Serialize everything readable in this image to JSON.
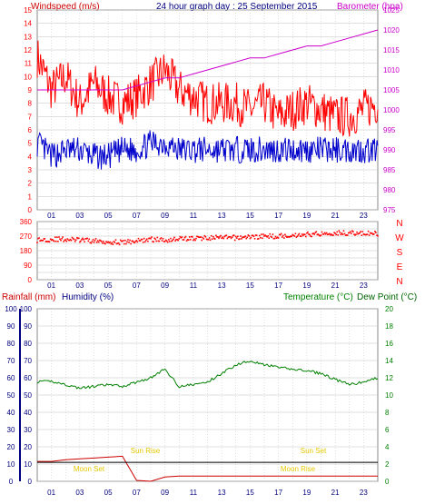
{
  "header": {
    "windspeed_label": "Windspeed (m/s)",
    "title": "24 hour graph day : 25 September 2015",
    "barometer_label": "Barometer (hpa)"
  },
  "lower_header": {
    "rainfall_label": "Rainfall (mm)",
    "humidity_label": "Humidity (%)",
    "temperature_label": "Temperature (°C)",
    "dewpoint_label": "Dew Point (°C)"
  },
  "colors": {
    "windspeed": "#ff0000",
    "gust": "#ff0000",
    "wind_avg": "#0000cc",
    "barometer": "#cc00cc",
    "direction": "#ff0000",
    "temperature": "#008000",
    "dewpoint": "#006400",
    "rainfall": "#cc0000",
    "humidity": "#000080",
    "text_title": "#000080",
    "grid": "#c0c0c0"
  },
  "x_ticks": [
    "01",
    "03",
    "05",
    "07",
    "09",
    "11",
    "13",
    "15",
    "17",
    "19",
    "21",
    "23"
  ],
  "chart_data": [
    {
      "type": "line",
      "title": "24 hour graph day : 25 September 2015",
      "ylabel": "Windspeed (m/s)",
      "y2label": "Barometer (hpa)",
      "ylim": [
        0,
        15
      ],
      "y2lim": [
        975,
        1025
      ],
      "yticks": [
        "0",
        "1",
        "2",
        "3",
        "4",
        "5",
        "6",
        "7",
        "8",
        "9",
        "10",
        "11",
        "12",
        "13",
        "14",
        "15"
      ],
      "y2ticks": [
        "975",
        "980",
        "985",
        "990",
        "995",
        "1000",
        "1005",
        "1010",
        "1015",
        "1020",
        "1025"
      ],
      "x": [
        0,
        1,
        2,
        3,
        4,
        5,
        6,
        7,
        8,
        9,
        10,
        11,
        12,
        13,
        14,
        15,
        16,
        17,
        18,
        19,
        20,
        21,
        22,
        23,
        24
      ],
      "series": [
        {
          "name": "gust",
          "axis": "left",
          "values": [
            11.5,
            9.0,
            10.0,
            8.0,
            9.5,
            8.5,
            8.0,
            8.5,
            9.5,
            10.5,
            9.0,
            8.5,
            8.0,
            8.0,
            8.0,
            7.5,
            8.0,
            7.0,
            7.5,
            8.0,
            7.5,
            7.0,
            7.0,
            7.5,
            8.0
          ]
        },
        {
          "name": "average",
          "axis": "left",
          "values": [
            5.0,
            4.0,
            4.5,
            4.5,
            4.0,
            4.0,
            4.5,
            4.5,
            5.0,
            5.0,
            4.5,
            4.5,
            4.5,
            4.5,
            4.5,
            4.5,
            4.5,
            4.5,
            4.5,
            4.5,
            4.5,
            4.5,
            4.5,
            4.5,
            4.5
          ]
        },
        {
          "name": "barometer",
          "axis": "right",
          "values": [
            1005,
            1005,
            1005,
            1005,
            1005,
            1005,
            1005,
            1006,
            1007,
            1008,
            1008,
            1009,
            1010,
            1011,
            1012,
            1013,
            1013,
            1014,
            1015,
            1016,
            1016,
            1017,
            1018,
            1019,
            1020
          ]
        }
      ]
    },
    {
      "type": "scatter",
      "ylim": [
        0,
        360
      ],
      "yticks": [
        "0",
        "45",
        "90",
        "135",
        "180",
        "225",
        "270",
        "315",
        "360"
      ],
      "compass": [
        "N",
        "W",
        "S",
        "E",
        "N"
      ],
      "x": [
        0,
        1,
        2,
        3,
        4,
        5,
        6,
        7,
        8,
        9,
        10,
        11,
        12,
        13,
        14,
        15,
        16,
        17,
        18,
        19,
        20,
        21,
        22,
        23,
        24
      ],
      "series": [
        {
          "name": "direction",
          "values": [
            245,
            250,
            250,
            245,
            240,
            235,
            230,
            240,
            250,
            245,
            255,
            255,
            260,
            260,
            260,
            265,
            268,
            270,
            275,
            280,
            285,
            290,
            290,
            285,
            285
          ]
        }
      ]
    },
    {
      "type": "line",
      "ylabel": "Rainfall (mm) / Humidity (%)",
      "y2label": "Temperature (°C) / Dew Point (°C)",
      "ylim_rain": [
        0,
        20
      ],
      "ylim_hum": [
        0,
        100
      ],
      "y2lim": [
        0,
        20
      ],
      "yticks_rain": [
        "0",
        "10",
        "20",
        "30",
        "40",
        "50",
        "60",
        "70",
        "80",
        "90",
        "100"
      ],
      "yticks_hum": [
        "0",
        "10",
        "20",
        "30",
        "40",
        "50",
        "60",
        "70",
        "80",
        "90",
        "100"
      ],
      "y2ticks": [
        "0",
        "2",
        "4",
        "6",
        "8",
        "10",
        "12",
        "14",
        "16",
        "18",
        "20"
      ],
      "x": [
        0,
        1,
        2,
        3,
        4,
        5,
        6,
        7,
        8,
        9,
        10,
        11,
        12,
        13,
        14,
        15,
        16,
        17,
        18,
        19,
        20,
        21,
        22,
        23,
        24
      ],
      "series": [
        {
          "name": "temperature",
          "axis": "right",
          "values": [
            11.5,
            11.6,
            11.2,
            10.8,
            11.0,
            11.2,
            11.0,
            11.5,
            12.0,
            13.0,
            11.0,
            11.2,
            11.5,
            12.5,
            13.5,
            14.0,
            13.5,
            13.2,
            13.0,
            12.8,
            12.5,
            11.8,
            11.2,
            11.5,
            12.0
          ]
        },
        {
          "name": "dewpoint",
          "axis": "right",
          "values": [
            2.3,
            2.3,
            2.5,
            2.6,
            2.7,
            2.8,
            2.9,
            0.1,
            0.0,
            0.5,
            0.6,
            0.6,
            0.6,
            0.6,
            0.6,
            0.6,
            0.6,
            0.6,
            0.6,
            0.6,
            0.6,
            0.6,
            0.6,
            0.6,
            0.6
          ]
        },
        {
          "name": "rainfall",
          "axis": "left",
          "values": [
            2.2,
            2.2,
            2.2,
            2.2,
            2.2,
            2.2,
            2.2,
            2.2,
            2.2,
            2.2,
            2.2,
            2.2,
            2.2,
            2.2,
            2.2,
            2.2,
            2.2,
            2.2,
            2.2,
            2.2,
            2.2,
            2.2,
            2.2,
            2.2,
            2.2
          ]
        }
      ],
      "annotations": [
        "Sun Rise",
        "Sun Set",
        "Moon Set",
        "Moon Rise"
      ]
    }
  ]
}
